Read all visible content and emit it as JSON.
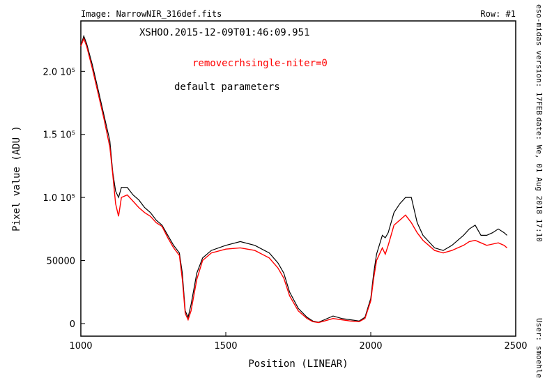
{
  "header": {
    "image_label": "Image:  NarrowNIR_316def.fits",
    "row_label": "Row:  #1"
  },
  "side_info": {
    "version": "eso-midas version:  17FEB",
    "date": "date:  We, 01 Aug 2018  17:10",
    "user": "User:  smoehler"
  },
  "annotations": {
    "obs_id": "XSHOO.2015-12-09T01:46:09.951",
    "legend_red": "removecrhsingle-niter=0",
    "legend_black": "default parameters"
  },
  "colors": {
    "black_series": "#000000",
    "red_series": "#ff0000"
  },
  "chart_data": {
    "type": "line",
    "title": "",
    "xlabel": "Position  (LINEAR)",
    "ylabel": "Pixel  value  (ADU  )",
    "xlim": [
      1000,
      2500
    ],
    "ylim": [
      -10000,
      240000
    ],
    "x_ticks": [
      1000,
      1500,
      2000,
      2500
    ],
    "y_ticks": [
      {
        "value": 0,
        "label": "0"
      },
      {
        "value": 50000,
        "label": "50000"
      },
      {
        "value": 100000,
        "label": "1.0  10⁵"
      },
      {
        "value": 150000,
        "label": "1.5  10⁵"
      },
      {
        "value": 200000,
        "label": "2.0  10⁵"
      }
    ],
    "grid": false,
    "legend": "top-left (text annotations)",
    "series": [
      {
        "name": "default parameters",
        "color": "#000000",
        "x": [
          1000,
          1010,
          1020,
          1040,
          1060,
          1080,
          1100,
          1110,
          1120,
          1130,
          1140,
          1160,
          1180,
          1200,
          1220,
          1240,
          1260,
          1280,
          1300,
          1320,
          1340,
          1350,
          1360,
          1370,
          1380,
          1400,
          1420,
          1450,
          1500,
          1550,
          1600,
          1650,
          1680,
          1700,
          1720,
          1750,
          1780,
          1800,
          1820,
          1840,
          1870,
          1900,
          1930,
          1960,
          1980,
          2000,
          2010,
          2020,
          2040,
          2050,
          2060,
          2080,
          2100,
          2120,
          2140,
          2160,
          2180,
          2200,
          2220,
          2250,
          2280,
          2300,
          2320,
          2340,
          2360,
          2380,
          2400,
          2420,
          2440,
          2460,
          2470
        ],
        "y": [
          220000,
          228000,
          222000,
          205000,
          185000,
          165000,
          145000,
          120000,
          105000,
          100000,
          108000,
          108000,
          102000,
          98000,
          92000,
          88000,
          82000,
          78000,
          70000,
          62000,
          56000,
          40000,
          10000,
          5000,
          15000,
          40000,
          52000,
          58000,
          62000,
          65000,
          62000,
          56000,
          48000,
          40000,
          25000,
          12000,
          5000,
          2000,
          1000,
          3000,
          6000,
          4000,
          3000,
          2000,
          5000,
          20000,
          40000,
          55000,
          70000,
          68000,
          72000,
          88000,
          95000,
          100000,
          100000,
          80000,
          70000,
          65000,
          60000,
          58000,
          62000,
          66000,
          70000,
          75000,
          78000,
          70000,
          70000,
          72000,
          75000,
          72000,
          70000
        ]
      },
      {
        "name": "removecrhsingle-niter=0",
        "color": "#ff0000",
        "x": [
          1000,
          1010,
          1020,
          1040,
          1060,
          1080,
          1100,
          1110,
          1120,
          1130,
          1140,
          1160,
          1180,
          1200,
          1220,
          1240,
          1260,
          1280,
          1300,
          1320,
          1340,
          1350,
          1360,
          1370,
          1380,
          1400,
          1420,
          1450,
          1500,
          1550,
          1600,
          1650,
          1680,
          1700,
          1720,
          1750,
          1780,
          1800,
          1820,
          1840,
          1870,
          1900,
          1930,
          1960,
          1980,
          2000,
          2010,
          2020,
          2040,
          2050,
          2060,
          2080,
          2100,
          2120,
          2140,
          2160,
          2180,
          2200,
          2220,
          2250,
          2280,
          2300,
          2320,
          2340,
          2360,
          2380,
          2400,
          2420,
          2440,
          2460,
          2470
        ],
        "y": [
          220000,
          226000,
          220000,
          202000,
          182000,
          162000,
          140000,
          118000,
          95000,
          85000,
          100000,
          102000,
          97000,
          92000,
          88000,
          85000,
          80000,
          77000,
          68000,
          60000,
          54000,
          35000,
          8000,
          3000,
          10000,
          35000,
          50000,
          56000,
          59000,
          60000,
          58000,
          52000,
          44000,
          36000,
          22000,
          10000,
          4000,
          1500,
          800,
          2000,
          4000,
          3000,
          2000,
          1500,
          4000,
          18000,
          36000,
          50000,
          60000,
          55000,
          62000,
          78000,
          82000,
          86000,
          80000,
          72000,
          66000,
          62000,
          58000,
          56000,
          58000,
          60000,
          62000,
          65000,
          66000,
          64000,
          62000,
          63000,
          64000,
          62000,
          60000
        ]
      }
    ]
  }
}
